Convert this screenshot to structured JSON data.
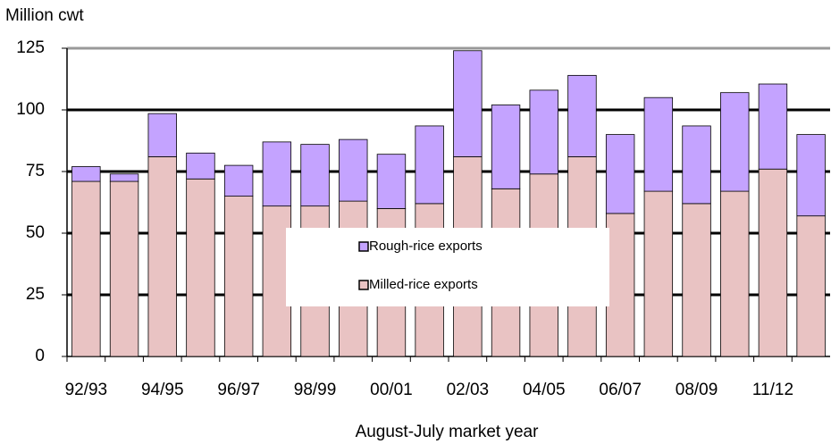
{
  "chart_data": {
    "type": "stacked-bar",
    "y_label": "Million cwt",
    "x_label": "August-July market year",
    "categories": [
      "92/93",
      null,
      "94/95",
      null,
      "96/97",
      null,
      "98/99",
      null,
      "00/01",
      null,
      "02/03",
      null,
      "04/05",
      null,
      "06/07",
      null,
      "08/09",
      null,
      "11/12",
      null
    ],
    "series": [
      {
        "name": "Milled-rice exports",
        "color": "#e9c3c3",
        "values": [
          71,
          71,
          81,
          72,
          65,
          61,
          61,
          63,
          60,
          62,
          81,
          68,
          74,
          81,
          58,
          67,
          62,
          67,
          76,
          57
        ]
      },
      {
        "name": "Rough-rice exports",
        "color": "#c4a3ff",
        "values": [
          6,
          3,
          17.5,
          10.5,
          12.5,
          26,
          25,
          25,
          22,
          31.5,
          43,
          34,
          34,
          33,
          32,
          38,
          31.5,
          40,
          34.5,
          33
        ]
      }
    ],
    "ylim": [
      0,
      125
    ],
    "yticks": [
      0,
      25,
      50,
      75,
      100,
      125
    ],
    "grid": true,
    "legend": "center"
  }
}
